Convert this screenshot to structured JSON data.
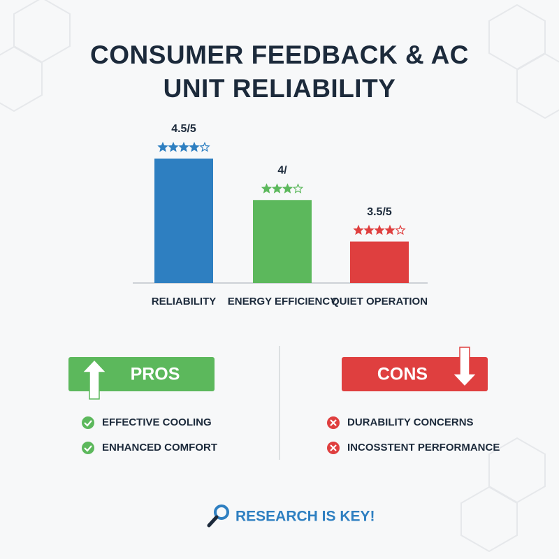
{
  "chart_data": {
    "type": "bar",
    "title": "CONSUMER FEEDBACK & AC UNIT RELIABILITY",
    "categories": [
      "RELIABILITY",
      "ENERGY EFFICIENCY",
      "QUIET OPERATION"
    ],
    "values": [
      4.5,
      4,
      3.5
    ],
    "value_labels": [
      "4.5/5",
      "4/",
      "3.5/5"
    ],
    "colors": [
      "#2e7fc1",
      "#5cb85c",
      "#df3f3f"
    ],
    "ylim": [
      3,
      4.6
    ]
  },
  "pros": {
    "title": "PROS",
    "items": [
      "EFFECTIVE COOLING",
      "ENHANCED COMFORT"
    ]
  },
  "cons": {
    "title": "CONS",
    "items": [
      "DURABILITY CONCERNS",
      "INCOSSTENT PERFORMANCE"
    ]
  },
  "footer": "RESEARCH IS KEY!"
}
